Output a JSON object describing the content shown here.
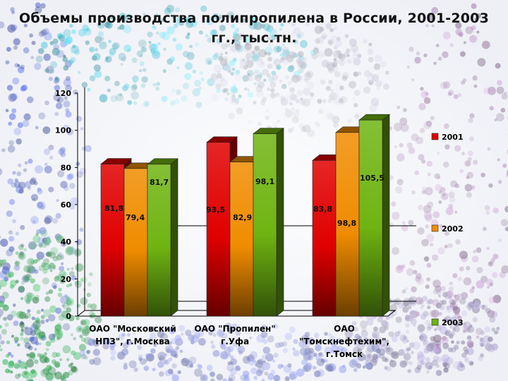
{
  "title": "Объемы производства полипропилена в России, 2001-2003 гг., тыс.тн.",
  "colors": {
    "2001": "#e00000",
    "2002": "#f08c00",
    "2003": "#6fb412"
  },
  "chart_data": {
    "type": "bar",
    "title": "Объемы производства полипропилена в России, 2001-2003 гг., тыс.тн.",
    "categories": [
      [
        "ОАО \"Московский",
        "НПЗ\", г.Москва"
      ],
      [
        "ОАО \"Пропилен\"",
        "г.Уфа"
      ],
      [
        "ОАО",
        "\"Томскнефтехим\",",
        "г.Томск"
      ]
    ],
    "series": [
      {
        "name": "2001",
        "values": [
          81.8,
          93.5,
          83.8
        ],
        "labels": [
          "81,8",
          "93,5",
          "83,8"
        ]
      },
      {
        "name": "2002",
        "values": [
          79.4,
          82.9,
          98.8
        ],
        "labels": [
          "79,4",
          "82,9",
          "98,8"
        ]
      },
      {
        "name": "2003",
        "values": [
          81.7,
          98.1,
          105.5
        ],
        "labels": [
          "81,7",
          "98,1",
          "105,5"
        ]
      }
    ],
    "ylim": [
      0,
      120
    ],
    "yticks": [
      0,
      20,
      40,
      60,
      80,
      100,
      120
    ],
    "xlabel": "",
    "ylabel": "",
    "grid": false,
    "legend_position": "right",
    "style": "3d"
  }
}
